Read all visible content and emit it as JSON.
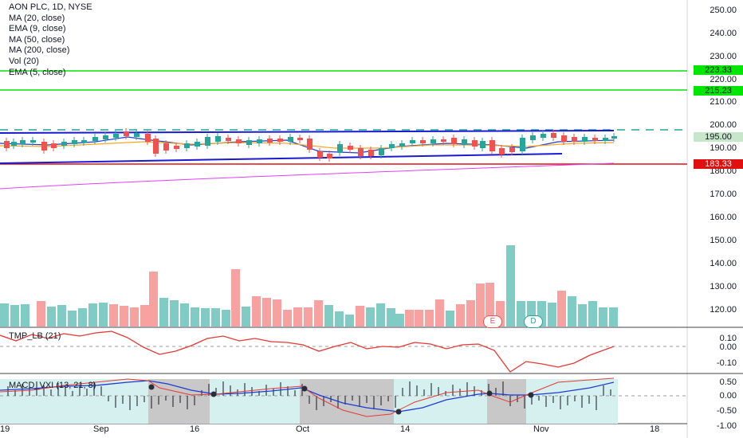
{
  "legend": {
    "title": "AON PLC, 1D, NYSE",
    "items": [
      "MA (20, close)",
      "EMA (9, close)",
      "MA (50, close)",
      "MA (200, close)",
      "Vol (20)",
      "EMA (5, close)"
    ]
  },
  "price_axis": {
    "ticks": [
      "250.00",
      "240.00",
      "230.00",
      "220.00",
      "210.00",
      "200.00",
      "190.00",
      "180.00",
      "170.00",
      "160.00",
      "150.00",
      "140.00",
      "130.00",
      "120.00"
    ],
    "tags": {
      "green_high": "223.33",
      "green_low": "215.23",
      "current": "195.00",
      "red": "183.33"
    }
  },
  "tmp_pane": {
    "label": "TMP_LB (21)",
    "ticks": [
      "0.10",
      "0.00",
      "-0.10"
    ]
  },
  "macd_pane": {
    "label": "MACD_VXI (13, 21, 8)",
    "ticks": [
      "0.50",
      "0.00",
      "-0.50",
      "-1.00"
    ]
  },
  "x_axis": {
    "ticks": [
      "19",
      "Sep",
      "16",
      "Oct",
      "14",
      "Nov",
      "18"
    ]
  },
  "badges": {
    "earnings": "E",
    "dividend": "D"
  },
  "colors": {
    "up": "#26a69a",
    "down": "#ef5350",
    "vol_up": "#80cbc4",
    "vol_down": "#f7a1a0",
    "channel": "#1a1ad1",
    "green_line": "#00e600",
    "red_line": "#e01010",
    "ma200": "#e040fb",
    "tmp": "#e53935",
    "macd_blue": "#1e3cd0",
    "macd_red": "#e53935",
    "shade_teal": "#d6efef",
    "shade_gray": "#c8c8c8"
  }
}
